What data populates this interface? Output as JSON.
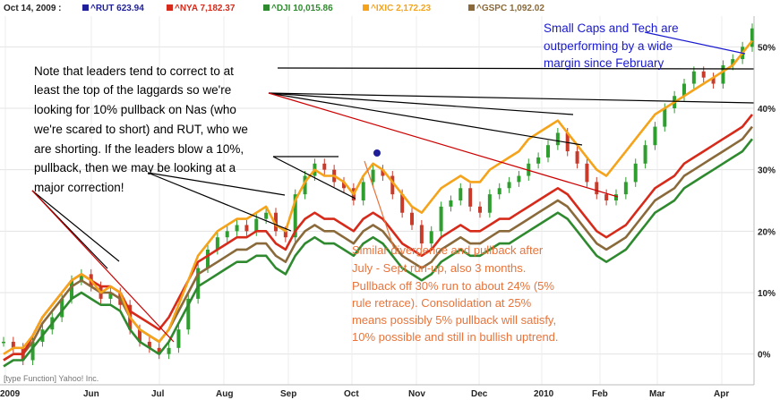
{
  "chart_data": {
    "type": "line",
    "title": "",
    "date_label": "Oct 14, 2009 :",
    "x_ticks": [
      "2009",
      "Jun",
      "Jul",
      "Aug",
      "Sep",
      "Oct",
      "Nov",
      "Dec",
      "2010",
      "Feb",
      "Mar",
      "Apr"
    ],
    "y_ticks": [
      "50%",
      "40%",
      "30%",
      "20%",
      "10%",
      "0%"
    ],
    "y_tick_values": [
      50,
      40,
      30,
      20,
      10,
      0
    ],
    "ylim": [
      -5,
      55
    ],
    "grid": true,
    "legend_position": "top",
    "credit": "[type Function] Yahoo! Inc.",
    "series": [
      {
        "name": "^RUT",
        "value": "623.94",
        "color": "#1f1f9a",
        "style": "candles",
        "values": [
          2,
          1,
          -1,
          2,
          4,
          6,
          9,
          12,
          13,
          11,
          9,
          10,
          8,
          4,
          2,
          1,
          0,
          1,
          4,
          9,
          14,
          17,
          19,
          20,
          21,
          20,
          22,
          23,
          20,
          19,
          26,
          29,
          31,
          30,
          28,
          27,
          25,
          28,
          30,
          29,
          26,
          23,
          21,
          18,
          20,
          24,
          25,
          27,
          24,
          23,
          26,
          27,
          28,
          29,
          31,
          32,
          34,
          36,
          33,
          31,
          28,
          26,
          25,
          26,
          28,
          31,
          34,
          37,
          40,
          42,
          44,
          46,
          45,
          44,
          47,
          48,
          50,
          53
        ]
      },
      {
        "name": "^NYA",
        "value": "7,182.37",
        "color": "#d62a1a",
        "style": "line",
        "values": [
          -1,
          0,
          0,
          3,
          6,
          8,
          10,
          12,
          13,
          12,
          11,
          11,
          10,
          7,
          6,
          5,
          4,
          6,
          9,
          12,
          15,
          16,
          17,
          18,
          19,
          19,
          20,
          20,
          18,
          17,
          20,
          22,
          23,
          22,
          22,
          21,
          20,
          22,
          23,
          22,
          20,
          18,
          17,
          16,
          17,
          19,
          20,
          21,
          20,
          20,
          21,
          22,
          22,
          23,
          24,
          25,
          26,
          27,
          26,
          24,
          22,
          20,
          19,
          20,
          21,
          23,
          25,
          27,
          28,
          29,
          31,
          32,
          33,
          34,
          35,
          36,
          37,
          39
        ]
      },
      {
        "name": "^DJI",
        "value": "10,015.86",
        "color": "#2f8a2f",
        "style": "line",
        "values": [
          -2,
          -1,
          -1,
          1,
          3,
          5,
          7,
          9,
          10,
          9,
          8,
          8,
          7,
          4,
          2,
          1,
          0,
          2,
          5,
          8,
          11,
          12,
          13,
          14,
          15,
          15,
          16,
          16,
          14,
          13,
          16,
          18,
          19,
          18,
          18,
          17,
          16,
          18,
          19,
          18,
          16,
          14,
          13,
          12,
          13,
          15,
          16,
          17,
          16,
          16,
          17,
          18,
          18,
          19,
          20,
          21,
          22,
          23,
          22,
          20,
          18,
          16,
          15,
          16,
          17,
          19,
          21,
          23,
          24,
          25,
          27,
          28,
          29,
          30,
          31,
          32,
          33,
          35
        ]
      },
      {
        "name": "^IXIC",
        "value": "2,172.23",
        "color": "#f5a31a",
        "style": "line",
        "values": [
          0,
          1,
          1,
          3,
          6,
          8,
          10,
          12,
          13,
          12,
          10,
          11,
          10,
          6,
          4,
          3,
          2,
          4,
          8,
          12,
          16,
          18,
          20,
          21,
          22,
          22,
          23,
          24,
          21,
          20,
          25,
          28,
          30,
          29,
          29,
          28,
          26,
          29,
          31,
          30,
          28,
          26,
          24,
          23,
          25,
          27,
          28,
          29,
          28,
          28,
          30,
          31,
          32,
          33,
          35,
          36,
          37,
          38,
          36,
          34,
          32,
          30,
          29,
          31,
          33,
          35,
          37,
          39,
          40,
          41,
          42,
          43,
          44,
          45,
          46,
          47,
          49,
          51
        ]
      },
      {
        "name": "^GSPC",
        "value": "1,092.02",
        "color": "#8a6a3a",
        "style": "line",
        "values": [
          -1,
          0,
          0,
          2,
          5,
          7,
          9,
          11,
          12,
          11,
          10,
          10,
          9,
          6,
          4,
          3,
          2,
          4,
          7,
          10,
          13,
          14,
          15,
          16,
          17,
          17,
          18,
          18,
          16,
          15,
          18,
          20,
          21,
          20,
          20,
          19,
          18,
          20,
          21,
          20,
          18,
          16,
          15,
          14,
          15,
          17,
          18,
          19,
          18,
          18,
          19,
          20,
          20,
          21,
          22,
          23,
          24,
          25,
          24,
          22,
          20,
          18,
          17,
          18,
          19,
          21,
          23,
          25,
          26,
          27,
          29,
          30,
          31,
          32,
          33,
          34,
          35,
          37
        ]
      }
    ],
    "annotations": [
      {
        "text": "Note that leaders tend to  correct to at"
      },
      {
        "text": "least the top of the laggards so we're"
      },
      {
        "text": "looking for 10% pullback on Nas (who"
      },
      {
        "text": "we're scared to short) and RUT, who we"
      },
      {
        "text": "are shorting.  If the leaders blow a 10%,"
      },
      {
        "text": "pullback, then we may be looking at a"
      },
      {
        "text": "major correction!"
      },
      {
        "text": "Similar divergence and pullback after"
      },
      {
        "text": "July - Sept run-up, also 3 months."
      },
      {
        "text": "Pullback off 30% run to about 24% (5%"
      },
      {
        "text": "rule retrace).  Consolidation at 25%"
      },
      {
        "text": "means possibly 5% pullback will satisfy,"
      },
      {
        "text": "10% possible and still in bullish uptrend."
      },
      {
        "text": "Small Caps and Tech are"
      },
      {
        "text": "outperforming by a wide"
      },
      {
        "text": "margin since February"
      }
    ]
  }
}
